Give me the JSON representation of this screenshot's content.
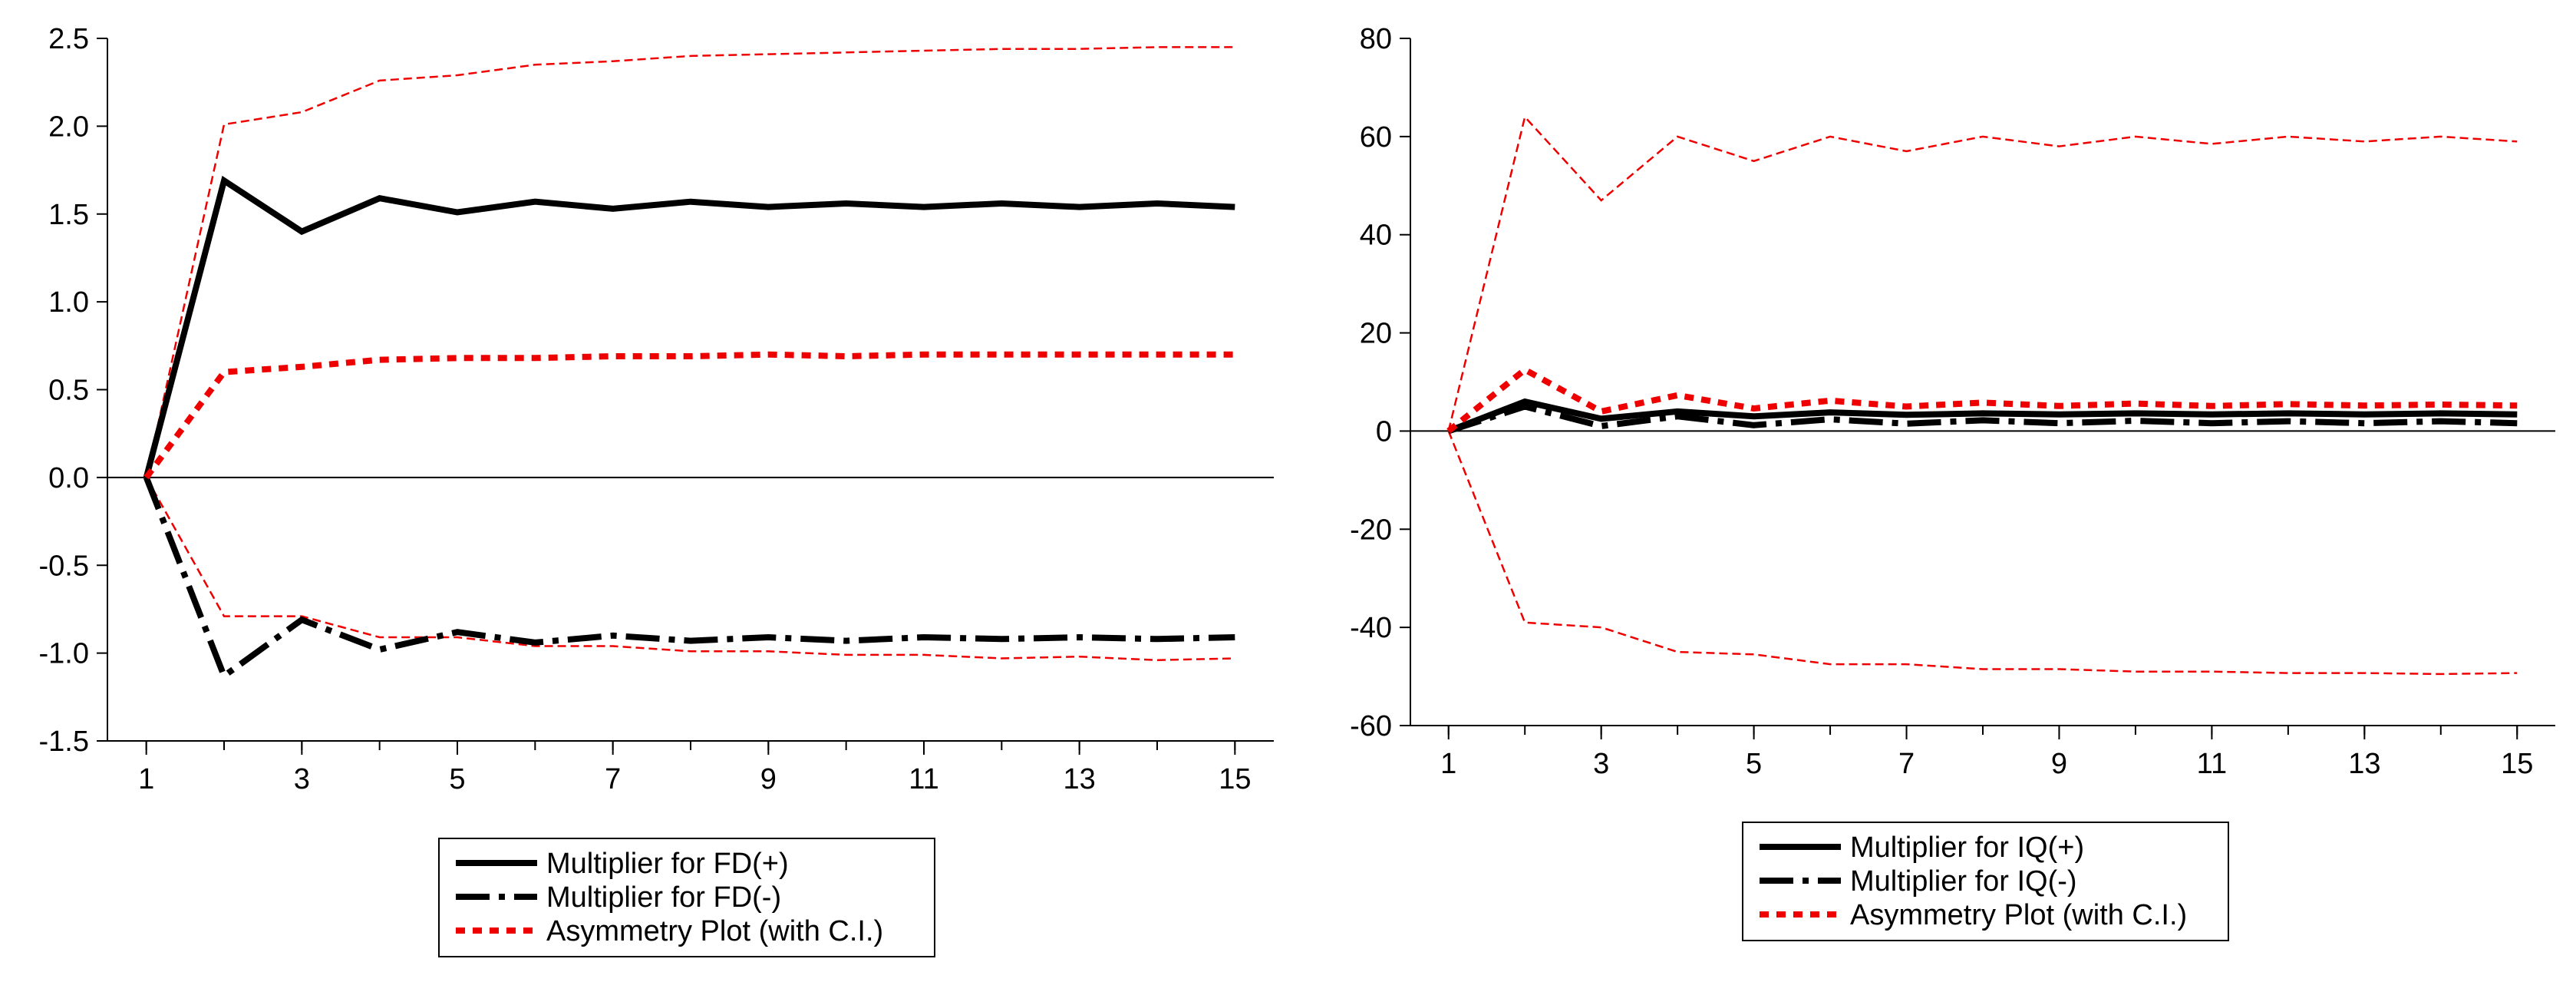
{
  "colors": {
    "black": "#000000",
    "red": "#ee0000",
    "background": "#ffffff"
  },
  "chart_data": [
    {
      "type": "line",
      "title": "",
      "xlabel": "",
      "ylabel": "",
      "x": [
        1,
        2,
        3,
        4,
        5,
        6,
        7,
        8,
        9,
        10,
        11,
        12,
        13,
        14,
        15
      ],
      "xticks": [
        1,
        3,
        5,
        7,
        9,
        11,
        13,
        15
      ],
      "xtick_labels": [
        "1",
        "3",
        "5",
        "7",
        "9",
        "11",
        "13",
        "15"
      ],
      "xlim": [
        0.5,
        15.5
      ],
      "ylim": [
        -1.5,
        2.5
      ],
      "yticks": [
        -1.5,
        -1.0,
        -0.5,
        0.0,
        0.5,
        1.0,
        1.5,
        2.0,
        2.5
      ],
      "ytick_labels": [
        "-1.5",
        "-1.0",
        "-0.5",
        "0.0",
        "0.5",
        "1.0",
        "1.5",
        "2.0",
        "2.5"
      ],
      "zero_line": true,
      "legend_position": "bottom-center",
      "series": [
        {
          "name": "Multiplier for FD(+)",
          "style": "solid",
          "color": "#000000",
          "in_legend": true,
          "values": [
            0,
            1.69,
            1.4,
            1.59,
            1.51,
            1.57,
            1.53,
            1.57,
            1.54,
            1.56,
            1.54,
            1.56,
            1.54,
            1.56,
            1.54
          ]
        },
        {
          "name": "Multiplier for FD(-)",
          "style": "longdash",
          "color": "#000000",
          "in_legend": true,
          "values": [
            0,
            -1.13,
            -0.81,
            -0.98,
            -0.88,
            -0.94,
            -0.9,
            -0.93,
            -0.91,
            -0.93,
            -0.91,
            -0.92,
            -0.91,
            -0.92,
            -0.91
          ]
        },
        {
          "name": "Asymmetry Plot (with C.I.)",
          "style": "dotted-thick",
          "color": "#ee0000",
          "in_legend": true,
          "values": [
            0,
            0.6,
            0.63,
            0.67,
            0.68,
            0.68,
            0.69,
            0.69,
            0.7,
            0.69,
            0.7,
            0.7,
            0.7,
            0.7,
            0.7
          ]
        },
        {
          "name": "Upper C.I.",
          "style": "dash-thin",
          "color": "#ee0000",
          "in_legend": false,
          "values": [
            0,
            2.01,
            2.08,
            2.26,
            2.29,
            2.35,
            2.37,
            2.4,
            2.41,
            2.42,
            2.43,
            2.44,
            2.44,
            2.45,
            2.45
          ]
        },
        {
          "name": "Lower C.I.",
          "style": "dash-thin",
          "color": "#ee0000",
          "in_legend": false,
          "values": [
            0,
            -0.79,
            -0.79,
            -0.91,
            -0.91,
            -0.96,
            -0.96,
            -0.99,
            -0.99,
            -1.01,
            -1.01,
            -1.03,
            -1.02,
            -1.04,
            -1.03
          ]
        }
      ]
    },
    {
      "type": "line",
      "title": "",
      "xlabel": "",
      "ylabel": "",
      "x": [
        1,
        2,
        3,
        4,
        5,
        6,
        7,
        8,
        9,
        10,
        11,
        12,
        13,
        14,
        15
      ],
      "xticks": [
        1,
        3,
        5,
        7,
        9,
        11,
        13,
        15
      ],
      "xtick_labels": [
        "1",
        "3",
        "5",
        "7",
        "9",
        "11",
        "13",
        "15"
      ],
      "xlim": [
        0.5,
        15.5
      ],
      "ylim": [
        -60,
        80
      ],
      "yticks": [
        -60,
        -40,
        -20,
        0,
        20,
        40,
        60,
        80
      ],
      "ytick_labels": [
        "-60",
        "-40",
        "-20",
        "0",
        "20",
        "40",
        "60",
        "80"
      ],
      "zero_line": true,
      "legend_position": "bottom-center",
      "series": [
        {
          "name": "Multiplier for IQ(+)",
          "style": "solid",
          "color": "#000000",
          "in_legend": true,
          "values": [
            0,
            6.0,
            2.5,
            4.0,
            3.0,
            3.8,
            3.3,
            3.6,
            3.4,
            3.6,
            3.4,
            3.6,
            3.4,
            3.6,
            3.4
          ]
        },
        {
          "name": "Multiplier for IQ(-)",
          "style": "longdash",
          "color": "#000000",
          "in_legend": true,
          "values": [
            0,
            5.0,
            1.0,
            3.0,
            1.2,
            2.4,
            1.5,
            2.2,
            1.6,
            2.1,
            1.6,
            2.0,
            1.6,
            2.0,
            1.6
          ]
        },
        {
          "name": "Asymmetry Plot (with C.I.)",
          "style": "dotted-thick",
          "color": "#ee0000",
          "in_legend": true,
          "values": [
            0,
            12.5,
            4.0,
            7.3,
            4.6,
            6.2,
            5.0,
            5.8,
            5.1,
            5.6,
            5.1,
            5.5,
            5.2,
            5.4,
            5.2
          ]
        },
        {
          "name": "Upper C.I.",
          "style": "dash-thin",
          "color": "#ee0000",
          "in_legend": false,
          "values": [
            0,
            64,
            47,
            60,
            55,
            60,
            57,
            60,
            58,
            60,
            58.5,
            60,
            59,
            60,
            59
          ]
        },
        {
          "name": "Lower C.I.",
          "style": "dash-thin",
          "color": "#ee0000",
          "in_legend": false,
          "values": [
            0,
            -39,
            -40,
            -45,
            -45.5,
            -47.5,
            -47.5,
            -48.5,
            -48.5,
            -49,
            -49,
            -49.3,
            -49.3,
            -49.5,
            -49.3
          ]
        }
      ]
    }
  ]
}
